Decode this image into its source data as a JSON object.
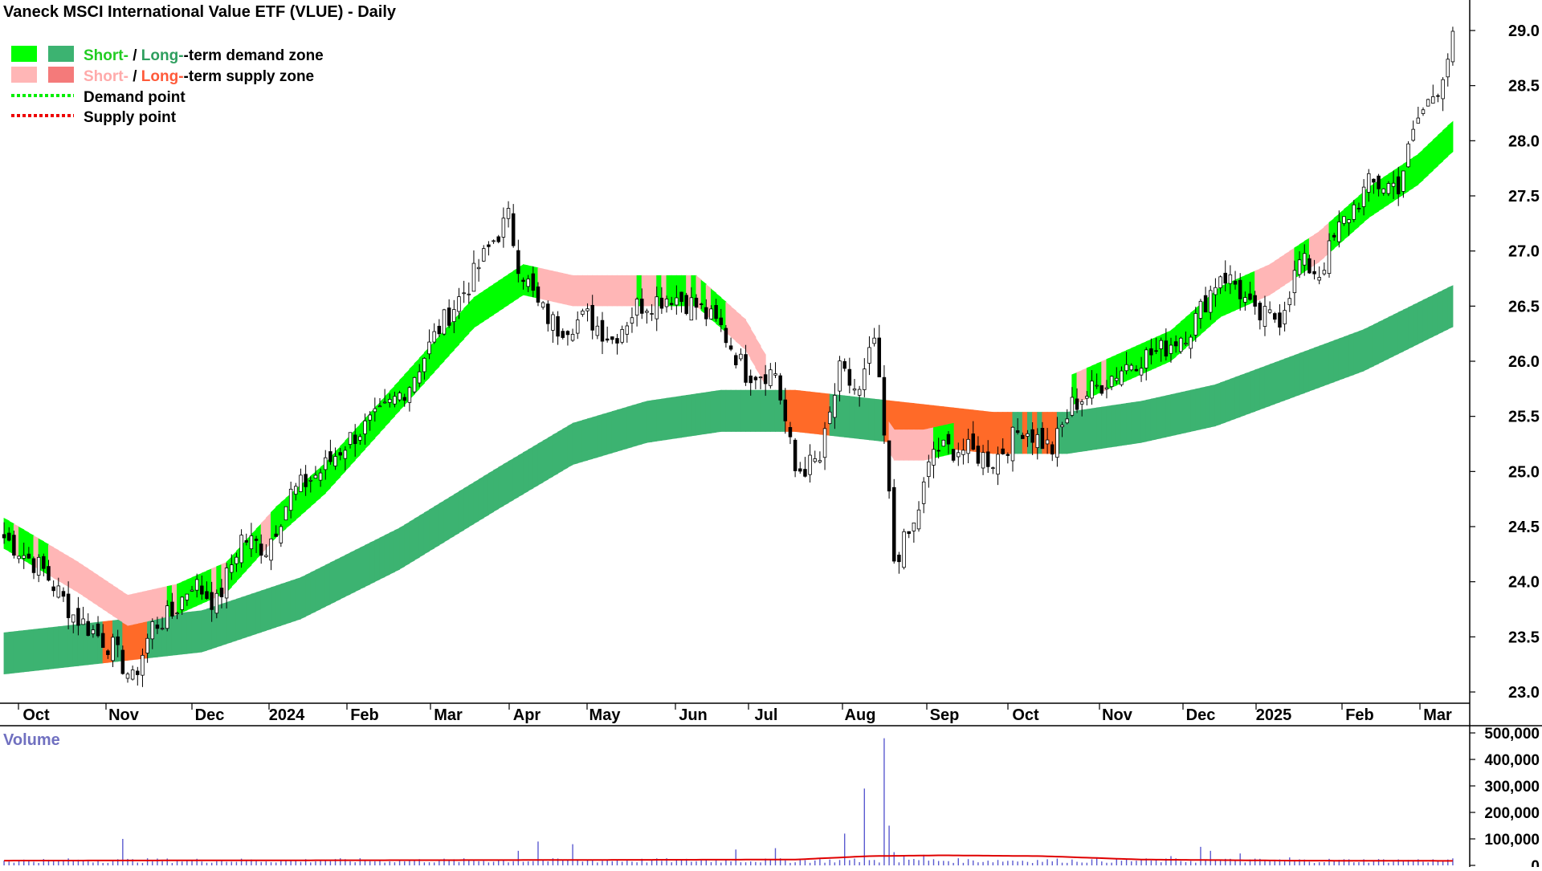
{
  "title": "Vaneck MSCI International Value ETF (VLUE) - Daily",
  "legend": {
    "short_prefix": "Short-",
    "separator": " / ",
    "long_prefix": "Long-",
    "demand_zone_suffix": "-term demand zone",
    "supply_zone_suffix": "-term supply zone",
    "demand_point": "Demand point",
    "supply_point": "Supply point"
  },
  "volume_label": "Volume",
  "colors": {
    "short_demand": "#00ff00",
    "long_demand": "#3cb371",
    "short_supply": "#ffb6b6",
    "long_supply": "#ff6a28",
    "demand_point": "#00ee00",
    "supply_point": "#ee0000",
    "volume_bar": "#5a5ad0",
    "volume_ma": "#e00000",
    "volume_label": "#7070c0",
    "axis": "#000000"
  },
  "chart_data": {
    "type": "candlestick",
    "title": "Vaneck MSCI International Value ETF (VLUE) - Daily",
    "x_tick_labels": [
      "Oct",
      "Nov",
      "Dec",
      "2024",
      "Feb",
      "Mar",
      "Apr",
      "May",
      "Jun",
      "Jul",
      "Aug",
      "Sep",
      "Oct",
      "Nov",
      "Dec",
      "2025",
      "Feb",
      "Mar"
    ],
    "y_tick_labels": [
      "23.0",
      "23.5",
      "24.0",
      "24.5",
      "25.0",
      "25.5",
      "26.0",
      "26.5",
      "27.0",
      "27.5",
      "28.0",
      "28.5",
      "29.0"
    ],
    "ylim": [
      22.9,
      29.1
    ],
    "price_keyframes": [
      [
        0,
        24.4
      ],
      [
        8,
        24.1
      ],
      [
        14,
        23.7
      ],
      [
        22,
        23.4
      ],
      [
        26,
        23.1
      ],
      [
        30,
        23.6
      ],
      [
        34,
        23.7
      ],
      [
        38,
        24.0
      ],
      [
        43,
        23.8
      ],
      [
        48,
        24.4
      ],
      [
        53,
        24.3
      ],
      [
        58,
        24.8
      ],
      [
        64,
        25.0
      ],
      [
        70,
        25.3
      ],
      [
        76,
        25.5
      ],
      [
        82,
        25.8
      ],
      [
        88,
        26.3
      ],
      [
        94,
        26.7
      ],
      [
        99,
        27.1
      ],
      [
        102,
        27.3
      ],
      [
        104,
        26.9
      ],
      [
        108,
        26.5
      ],
      [
        112,
        26.3
      ],
      [
        118,
        26.4
      ],
      [
        123,
        26.2
      ],
      [
        128,
        26.5
      ],
      [
        135,
        26.6
      ],
      [
        140,
        26.5
      ],
      [
        145,
        26.3
      ],
      [
        150,
        25.9
      ],
      [
        156,
        25.9
      ],
      [
        160,
        25.0
      ],
      [
        165,
        25.1
      ],
      [
        169,
        25.9
      ],
      [
        173,
        25.7
      ],
      [
        176,
        26.2
      ],
      [
        178,
        25.3
      ],
      [
        180,
        24.2
      ],
      [
        184,
        24.5
      ],
      [
        188,
        25.2
      ],
      [
        194,
        25.2
      ],
      [
        200,
        25.1
      ],
      [
        206,
        25.4
      ],
      [
        212,
        25.2
      ],
      [
        216,
        25.6
      ],
      [
        222,
        25.8
      ],
      [
        228,
        26.0
      ],
      [
        234,
        26.1
      ],
      [
        240,
        26.3
      ],
      [
        246,
        26.8
      ],
      [
        249,
        26.7
      ],
      [
        253,
        26.4
      ],
      [
        258,
        26.4
      ],
      [
        262,
        26.9
      ],
      [
        266,
        26.8
      ],
      [
        270,
        27.2
      ],
      [
        276,
        27.6
      ],
      [
        282,
        27.6
      ],
      [
        286,
        28.2
      ],
      [
        290,
        28.5
      ],
      [
        293,
        28.9
      ]
    ],
    "short_band_lower_keyframes": [
      [
        0,
        24.3
      ],
      [
        15,
        23.9
      ],
      [
        25,
        23.6
      ],
      [
        35,
        23.7
      ],
      [
        45,
        23.9
      ],
      [
        55,
        24.4
      ],
      [
        65,
        24.8
      ],
      [
        75,
        25.3
      ],
      [
        85,
        25.8
      ],
      [
        95,
        26.3
      ],
      [
        105,
        26.6
      ],
      [
        115,
        26.5
      ],
      [
        130,
        26.5
      ],
      [
        140,
        26.5
      ],
      [
        150,
        26.1
      ],
      [
        155,
        25.7
      ],
      [
        162,
        25.3
      ],
      [
        172,
        25.5
      ],
      [
        176,
        25.4
      ],
      [
        180,
        25.1
      ],
      [
        186,
        25.1
      ],
      [
        196,
        25.2
      ],
      [
        206,
        25.3
      ],
      [
        216,
        25.6
      ],
      [
        226,
        25.8
      ],
      [
        236,
        26.0
      ],
      [
        246,
        26.4
      ],
      [
        256,
        26.6
      ],
      [
        266,
        26.9
      ],
      [
        276,
        27.3
      ],
      [
        286,
        27.6
      ],
      [
        293,
        27.9
      ]
    ],
    "short_band_width": 0.28,
    "long_band_center_keyframes": [
      [
        0,
        23.35
      ],
      [
        20,
        23.45
      ],
      [
        40,
        23.55
      ],
      [
        60,
        23.85
      ],
      [
        80,
        24.3
      ],
      [
        100,
        24.85
      ],
      [
        115,
        25.25
      ],
      [
        130,
        25.45
      ],
      [
        145,
        25.55
      ],
      [
        160,
        25.55
      ],
      [
        180,
        25.45
      ],
      [
        200,
        25.35
      ],
      [
        215,
        25.35
      ],
      [
        230,
        25.45
      ],
      [
        245,
        25.6
      ],
      [
        260,
        25.85
      ],
      [
        275,
        26.1
      ],
      [
        293,
        26.5
      ]
    ],
    "long_band_width": 0.38,
    "volume": {
      "ylim": [
        0,
        500000
      ],
      "y_tick_labels": [
        "500,000",
        "400,000",
        "300,000",
        "200,000",
        "100,000",
        "0"
      ],
      "base_volume": 18000,
      "spikes": [
        [
          24,
          100000
        ],
        [
          104,
          55000
        ],
        [
          108,
          90000
        ],
        [
          115,
          80000
        ],
        [
          148,
          60000
        ],
        [
          156,
          65000
        ],
        [
          170,
          120000
        ],
        [
          174,
          290000
        ],
        [
          178,
          480000
        ],
        [
          179,
          150000
        ],
        [
          180,
          50000
        ],
        [
          182,
          35000
        ],
        [
          186,
          40000
        ],
        [
          242,
          70000
        ],
        [
          244,
          55000
        ],
        [
          250,
          45000
        ],
        [
          236,
          35000
        ],
        [
          260,
          30000
        ]
      ],
      "ma_keyframes": [
        [
          0,
          18000
        ],
        [
          100,
          20000
        ],
        [
          160,
          22000
        ],
        [
          175,
          35000
        ],
        [
          190,
          38000
        ],
        [
          210,
          35000
        ],
        [
          230,
          22000
        ],
        [
          260,
          18000
        ],
        [
          293,
          17000
        ]
      ]
    },
    "n_days": 294
  }
}
